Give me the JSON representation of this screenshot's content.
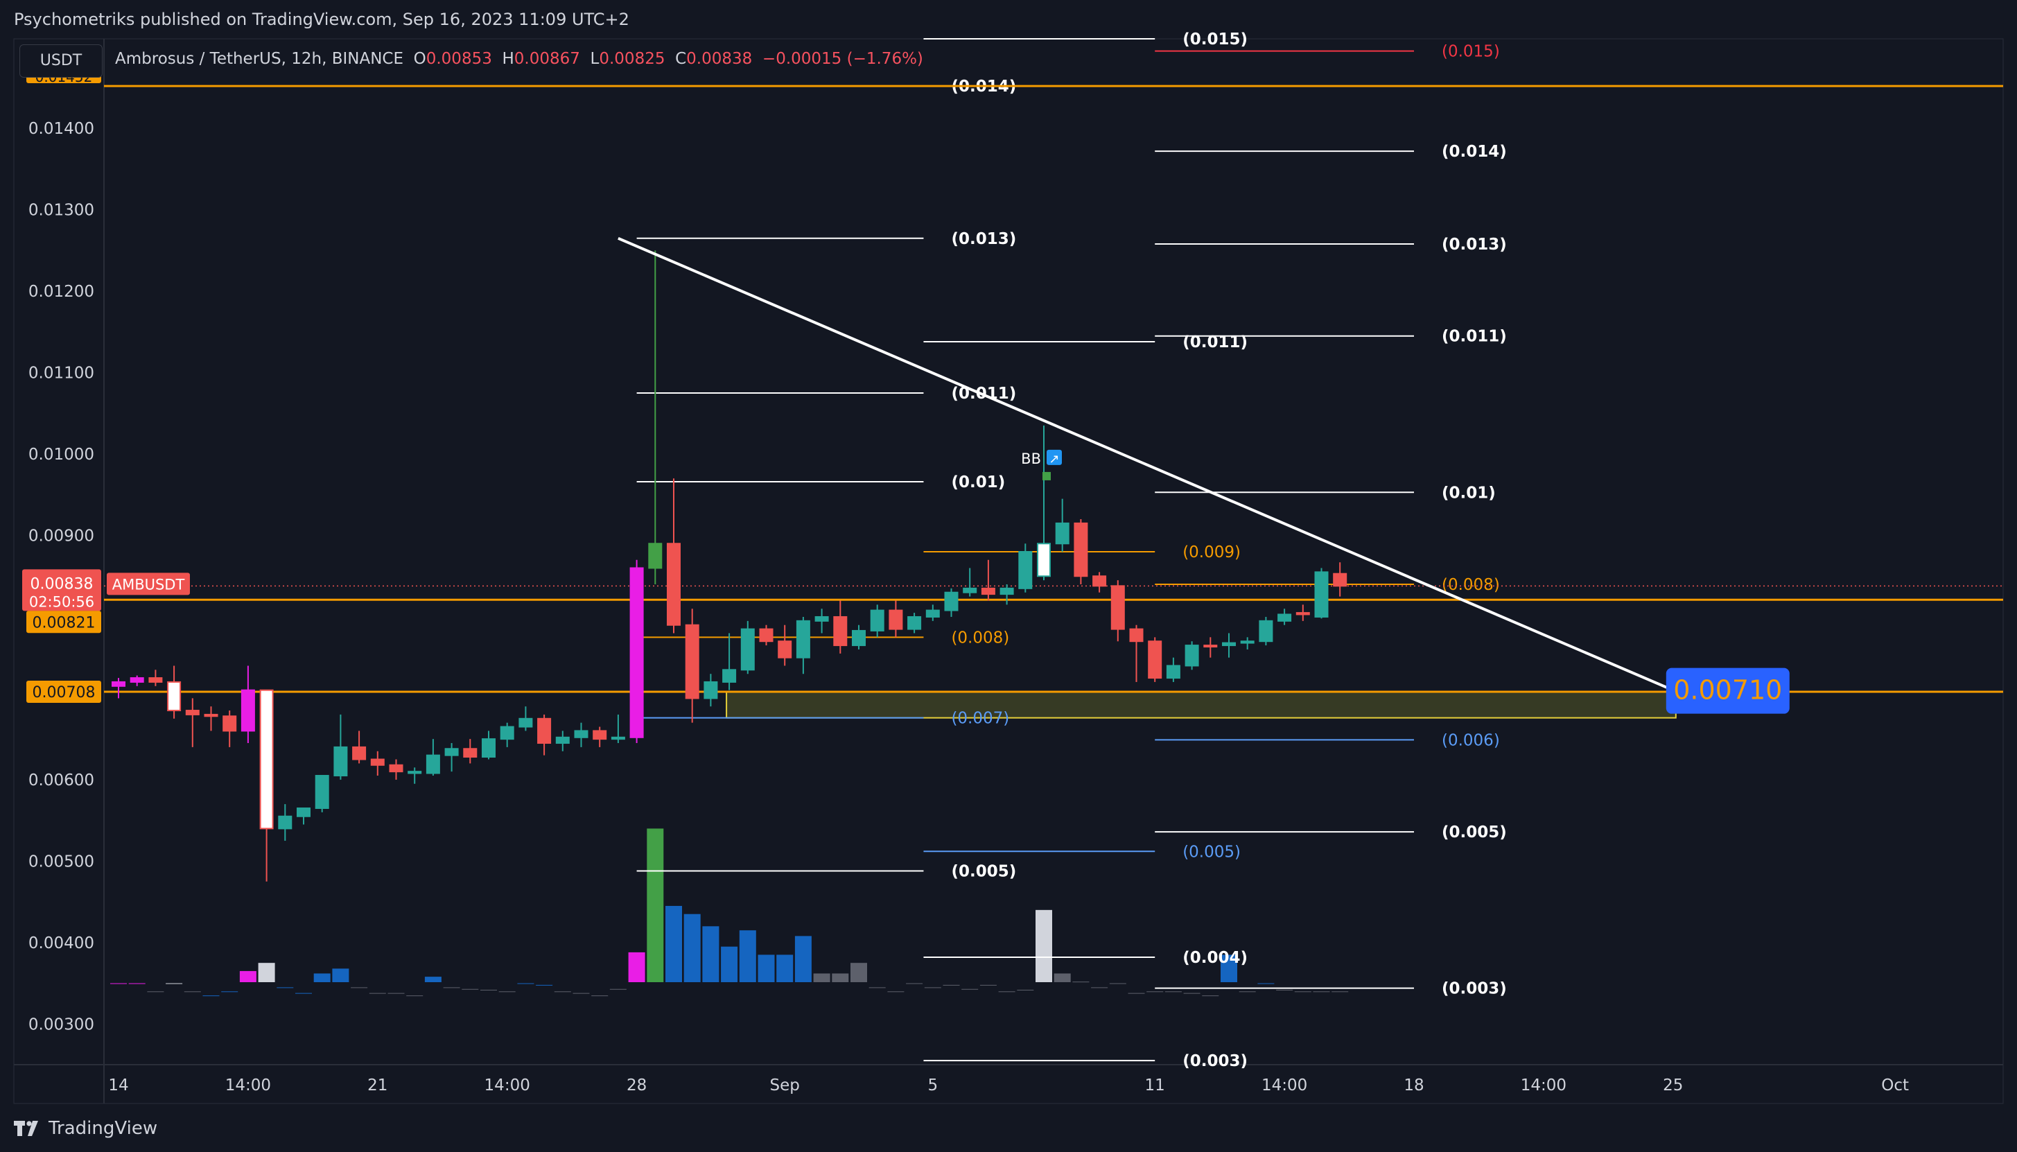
{
  "header": {
    "published": "Psychometriks published on TradingView.com, Sep 16, 2023 11:09 UTC+2"
  },
  "symbol_box": {
    "label": "USDT"
  },
  "legend": {
    "pair": "Ambrosus / TetherUS, 12h, BINANCE",
    "o_label": "O",
    "o_value": "0.00853",
    "h_label": "H",
    "h_value": "0.00867",
    "l_label": "L",
    "l_value": "0.00825",
    "c_label": "C",
    "c_value": "0.00838",
    "change": "−0.00015 (−1.76%)"
  },
  "footer": {
    "brand": "TradingView"
  },
  "colors": {
    "bg": "#131722",
    "up": "#26a69a",
    "down": "#ef5350",
    "orange": "#f59b00",
    "blue_label": "#2962ff",
    "magenta": "#e91ee6",
    "vol_blue": "#1565c0",
    "vol_gray": "#5d606b"
  },
  "chart_data": {
    "type": "candlestick",
    "timeframe": "12h",
    "ylim": [
      0.0025,
      0.0151
    ],
    "y_ticks": [
      "0.01400",
      "0.01300",
      "0.01200",
      "0.01100",
      "0.01000",
      "0.00900",
      "0.00600",
      "0.00500",
      "0.00400",
      "0.00300"
    ],
    "x_ticks": [
      {
        "label": "14",
        "bar": 0
      },
      {
        "label": "14:00",
        "bar": 7
      },
      {
        "label": "21",
        "bar": 14
      },
      {
        "label": "14:00",
        "bar": 21
      },
      {
        "label": "28",
        "bar": 28
      },
      {
        "label": "Sep",
        "bar": 36
      },
      {
        "label": "5",
        "bar": 44
      },
      {
        "label": "11",
        "bar": 56
      },
      {
        "label": "14:00",
        "bar": 63
      },
      {
        "label": "18",
        "bar": 70
      },
      {
        "label": "14:00",
        "bar": 77
      },
      {
        "label": "25",
        "bar": 84
      },
      {
        "label": "Oct",
        "bar": 96
      }
    ],
    "candles": [
      [
        0.00715,
        0.00725,
        0.007,
        0.0072,
        "magenta"
      ],
      [
        0.0072,
        0.00728,
        0.00715,
        0.00725,
        "magenta"
      ],
      [
        0.00725,
        0.00735,
        0.00715,
        0.0072,
        "down"
      ],
      [
        0.0072,
        0.0074,
        0.00675,
        0.00685,
        "hollow"
      ],
      [
        0.00685,
        0.007,
        0.0064,
        0.0068,
        "down"
      ],
      [
        0.0068,
        0.0069,
        0.0066,
        0.00678,
        "down"
      ],
      [
        0.00678,
        0.00685,
        0.0064,
        0.0066,
        "down"
      ],
      [
        0.0066,
        0.0074,
        0.00645,
        0.0071,
        "magenta"
      ],
      [
        0.0071,
        0.0071,
        0.00475,
        0.0054,
        "hollow"
      ],
      [
        0.0054,
        0.0057,
        0.00525,
        0.00555,
        "up"
      ],
      [
        0.00555,
        0.00565,
        0.00545,
        0.00565,
        "up"
      ],
      [
        0.00565,
        0.00605,
        0.0056,
        0.00605,
        "up"
      ],
      [
        0.00605,
        0.0068,
        0.006,
        0.0064,
        "up"
      ],
      [
        0.0064,
        0.0066,
        0.0062,
        0.00625,
        "down"
      ],
      [
        0.00625,
        0.00635,
        0.00605,
        0.00618,
        "down"
      ],
      [
        0.00618,
        0.00625,
        0.006,
        0.0061,
        "down"
      ],
      [
        0.0061,
        0.00615,
        0.00595,
        0.00608,
        "up"
      ],
      [
        0.00608,
        0.0065,
        0.00605,
        0.0063,
        "up"
      ],
      [
        0.0063,
        0.00645,
        0.0061,
        0.00638,
        "up"
      ],
      [
        0.00638,
        0.0065,
        0.0062,
        0.00628,
        "down"
      ],
      [
        0.00628,
        0.0066,
        0.00625,
        0.0065,
        "up"
      ],
      [
        0.0065,
        0.0067,
        0.0064,
        0.00665,
        "up"
      ],
      [
        0.00665,
        0.0069,
        0.0066,
        0.00675,
        "up"
      ],
      [
        0.00675,
        0.0068,
        0.0063,
        0.00645,
        "down"
      ],
      [
        0.00645,
        0.0066,
        0.00635,
        0.00652,
        "up"
      ],
      [
        0.00652,
        0.0067,
        0.0064,
        0.0066,
        "up"
      ],
      [
        0.0066,
        0.00665,
        0.0064,
        0.0065,
        "down"
      ],
      [
        0.0065,
        0.0068,
        0.00645,
        0.00652,
        "up"
      ],
      [
        0.00652,
        0.0087,
        0.00645,
        0.0086,
        "magenta"
      ],
      [
        0.0086,
        0.0125,
        0.0084,
        0.0089,
        "green"
      ],
      [
        0.0089,
        0.0097,
        0.0078,
        0.0079,
        "down"
      ],
      [
        0.0079,
        0.0081,
        0.0067,
        0.007,
        "down"
      ],
      [
        0.007,
        0.0073,
        0.0069,
        0.0072,
        "up"
      ],
      [
        0.0072,
        0.0078,
        0.0071,
        0.00735,
        "up"
      ],
      [
        0.00735,
        0.00795,
        0.0073,
        0.00785,
        "up"
      ],
      [
        0.00785,
        0.0079,
        0.00765,
        0.0077,
        "down"
      ],
      [
        0.0077,
        0.0079,
        0.0074,
        0.0075,
        "down"
      ],
      [
        0.0075,
        0.008,
        0.0073,
        0.00795,
        "up"
      ],
      [
        0.00795,
        0.0081,
        0.0078,
        0.008,
        "up"
      ],
      [
        0.008,
        0.0082,
        0.00755,
        0.00765,
        "down"
      ],
      [
        0.00765,
        0.0079,
        0.0076,
        0.00783,
        "up"
      ],
      [
        0.00783,
        0.00815,
        0.00775,
        0.00808,
        "up"
      ],
      [
        0.00808,
        0.0082,
        0.00775,
        0.00785,
        "down"
      ],
      [
        0.00785,
        0.00805,
        0.0078,
        0.008,
        "up"
      ],
      [
        0.008,
        0.00815,
        0.00795,
        0.00808,
        "up"
      ],
      [
        0.00808,
        0.00835,
        0.008,
        0.0083,
        "up"
      ],
      [
        0.0083,
        0.0086,
        0.00825,
        0.00835,
        "up"
      ],
      [
        0.00835,
        0.0087,
        0.0082,
        0.00828,
        "down"
      ],
      [
        0.00828,
        0.0084,
        0.00815,
        0.00835,
        "up"
      ],
      [
        0.00835,
        0.0089,
        0.0083,
        0.0088,
        "up"
      ],
      [
        0.0085,
        0.01035,
        0.00845,
        0.0089,
        "hollow"
      ],
      [
        0.0089,
        0.00945,
        0.0088,
        0.00915,
        "up"
      ],
      [
        0.00915,
        0.0092,
        0.0084,
        0.0085,
        "down"
      ],
      [
        0.0085,
        0.00855,
        0.0083,
        0.00838,
        "down"
      ],
      [
        0.00838,
        0.00845,
        0.0077,
        0.00785,
        "down"
      ],
      [
        0.00785,
        0.0079,
        0.0072,
        0.0077,
        "down"
      ],
      [
        0.0077,
        0.00775,
        0.0072,
        0.00725,
        "down"
      ],
      [
        0.00725,
        0.0075,
        0.0072,
        0.0074,
        "up"
      ],
      [
        0.0074,
        0.0077,
        0.00735,
        0.00765,
        "up"
      ],
      [
        0.00765,
        0.00775,
        0.0075,
        0.00765,
        "down"
      ],
      [
        0.00765,
        0.0078,
        0.0075,
        0.00768,
        "up"
      ],
      [
        0.00768,
        0.00775,
        0.0076,
        0.0077,
        "up"
      ],
      [
        0.0077,
        0.008,
        0.00765,
        0.00795,
        "up"
      ],
      [
        0.00795,
        0.0081,
        0.0079,
        0.00803,
        "up"
      ],
      [
        0.00803,
        0.00815,
        0.00795,
        0.00805,
        "down"
      ],
      [
        0.008,
        0.0086,
        0.00798,
        0.00855,
        "up"
      ],
      [
        0.00853,
        0.00867,
        0.00825,
        0.00838,
        "down"
      ]
    ],
    "volumes": [
      [
        0.0035,
        "magenta"
      ],
      [
        0.0035,
        "magenta"
      ],
      [
        0.0034,
        "gray"
      ],
      [
        0.0035,
        "lightgray"
      ],
      [
        0.0034,
        "gray"
      ],
      [
        0.00335,
        "blue"
      ],
      [
        0.0034,
        "blue"
      ],
      [
        0.00365,
        "magenta"
      ],
      [
        0.00375,
        "lightgray"
      ],
      [
        0.00345,
        "blue"
      ],
      [
        0.00338,
        "blue"
      ],
      [
        0.00362,
        "blue"
      ],
      [
        0.00368,
        "blue"
      ],
      [
        0.00345,
        "gray"
      ],
      [
        0.00338,
        "gray"
      ],
      [
        0.00338,
        "gray"
      ],
      [
        0.00335,
        "gray"
      ],
      [
        0.00358,
        "blue"
      ],
      [
        0.00345,
        "gray"
      ],
      [
        0.00343,
        "gray"
      ],
      [
        0.00342,
        "gray"
      ],
      [
        0.0034,
        "gray"
      ],
      [
        0.0035,
        "blue"
      ],
      [
        0.00348,
        "blue"
      ],
      [
        0.0034,
        "gray"
      ],
      [
        0.00338,
        "gray"
      ],
      [
        0.00335,
        "gray"
      ],
      [
        0.00343,
        "gray"
      ],
      [
        0.00388,
        "magenta"
      ],
      [
        0.0054,
        "green"
      ],
      [
        0.00445,
        "blue"
      ],
      [
        0.00435,
        "blue"
      ],
      [
        0.0042,
        "blue"
      ],
      [
        0.00395,
        "blue"
      ],
      [
        0.00415,
        "blue"
      ],
      [
        0.00385,
        "blue"
      ],
      [
        0.00385,
        "blue"
      ],
      [
        0.00408,
        "blue"
      ],
      [
        0.00362,
        "gray"
      ],
      [
        0.00362,
        "gray"
      ],
      [
        0.00375,
        "gray"
      ],
      [
        0.00345,
        "gray"
      ],
      [
        0.0034,
        "gray"
      ],
      [
        0.0035,
        "gray"
      ],
      [
        0.00345,
        "gray"
      ],
      [
        0.00348,
        "gray"
      ],
      [
        0.00343,
        "gray"
      ],
      [
        0.00348,
        "gray"
      ],
      [
        0.0034,
        "gray"
      ],
      [
        0.00342,
        "gray"
      ],
      [
        0.0044,
        "lightgray"
      ],
      [
        0.00362,
        "gray"
      ],
      [
        0.00352,
        "gray"
      ],
      [
        0.00345,
        "gray"
      ],
      [
        0.0035,
        "gray"
      ],
      [
        0.00338,
        "gray"
      ],
      [
        0.0034,
        "gray"
      ],
      [
        0.0034,
        "gray"
      ],
      [
        0.00338,
        "gray"
      ],
      [
        0.00335,
        "gray"
      ],
      [
        0.00385,
        "blue"
      ],
      [
        0.0034,
        "gray"
      ],
      [
        0.0035,
        "blue"
      ],
      [
        0.00342,
        "gray"
      ],
      [
        0.0034,
        "gray"
      ],
      [
        0.0034,
        "gray"
      ],
      [
        0.0034,
        "gray"
      ]
    ],
    "horizontal_lines": [
      {
        "price": 0.01452,
        "color": "orange"
      },
      {
        "price": 0.00821,
        "color": "orange"
      },
      {
        "price": 0.00708,
        "color": "orange"
      }
    ],
    "trendline": {
      "from": {
        "bar": 27,
        "price": 0.01265
      },
      "to": {
        "bar": 84,
        "price": 0.0071
      }
    },
    "zone": {
      "from_bar": 33,
      "to_bar": 84,
      "top": 0.00708,
      "bottom": 0.00676
    },
    "fib_levels": [
      {
        "x1": 28.0,
        "x2": 43.5,
        "price": 0.01452,
        "label": "(0.014)",
        "color": "white"
      },
      {
        "x1": 28.0,
        "x2": 43.5,
        "price": 0.01265,
        "label": "(0.013)",
        "color": "white"
      },
      {
        "x1": 28.0,
        "x2": 43.5,
        "price": 0.01075,
        "label": "(0.011)",
        "color": "white"
      },
      {
        "x1": 28.0,
        "x2": 43.5,
        "price": 0.00966,
        "label": "(0.01)",
        "color": "white"
      },
      {
        "x1": 28.0,
        "x2": 43.5,
        "price": 0.00775,
        "label": "(0.008)",
        "color": "orange"
      },
      {
        "x1": 28.0,
        "x2": 43.5,
        "price": 0.00676,
        "label": "(0.007)",
        "color": "blue"
      },
      {
        "x1": 28.0,
        "x2": 43.5,
        "price": 0.00488,
        "label": "(0.005)",
        "color": "white"
      },
      {
        "x1": 43.5,
        "x2": 56.0,
        "price": 0.0151,
        "label": "(0.015)",
        "color": "white"
      },
      {
        "x1": 43.5,
        "x2": 56.0,
        "price": 0.01138,
        "label": "(0.011)",
        "color": "white"
      },
      {
        "x1": 43.5,
        "x2": 56.0,
        "price": 0.0088,
        "label": "(0.009)",
        "color": "orange"
      },
      {
        "x1": 43.5,
        "x2": 56.0,
        "price": 0.00512,
        "label": "(0.005)",
        "color": "blue"
      },
      {
        "x1": 43.5,
        "x2": 56.0,
        "price": 0.00382,
        "label": "(0.004)",
        "color": "white"
      },
      {
        "x1": 43.5,
        "x2": 56.0,
        "price": 0.00255,
        "label": "(0.003)",
        "color": "white"
      },
      {
        "x1": 56.0,
        "x2": 70.0,
        "price": 0.01495,
        "label": "(0.015)",
        "color": "red"
      },
      {
        "x1": 56.0,
        "x2": 70.0,
        "price": 0.01372,
        "label": "(0.014)",
        "color": "white"
      },
      {
        "x1": 56.0,
        "x2": 70.0,
        "price": 0.01258,
        "label": "(0.013)",
        "color": "white"
      },
      {
        "x1": 56.0,
        "x2": 70.0,
        "price": 0.01145,
        "label": "(0.011)",
        "color": "white"
      },
      {
        "x1": 56.0,
        "x2": 70.0,
        "price": 0.00953,
        "label": "(0.01)",
        "color": "white"
      },
      {
        "x1": 56.0,
        "x2": 70.0,
        "price": 0.0084,
        "label": "(0.008)",
        "color": "orange"
      },
      {
        "x1": 56.0,
        "x2": 70.0,
        "price": 0.00649,
        "label": "(0.006)",
        "color": "blue"
      },
      {
        "x1": 56.0,
        "x2": 70.0,
        "price": 0.00536,
        "label": "(0.005)",
        "color": "white"
      },
      {
        "x1": 56.0,
        "x2": 70.0,
        "price": 0.00344,
        "label": "(0.003)",
        "color": "white"
      }
    ],
    "price_labels": {
      "current": "0.00838",
      "countdown": "02:50:56",
      "symbol": "AMBUSDT",
      "level_upper": "0.00821",
      "level_lower": "0.00708",
      "target": "0.00710",
      "top_partial": "0.01452"
    },
    "signal": {
      "label": "BB",
      "bar": 50,
      "price": 0.00995
    }
  }
}
